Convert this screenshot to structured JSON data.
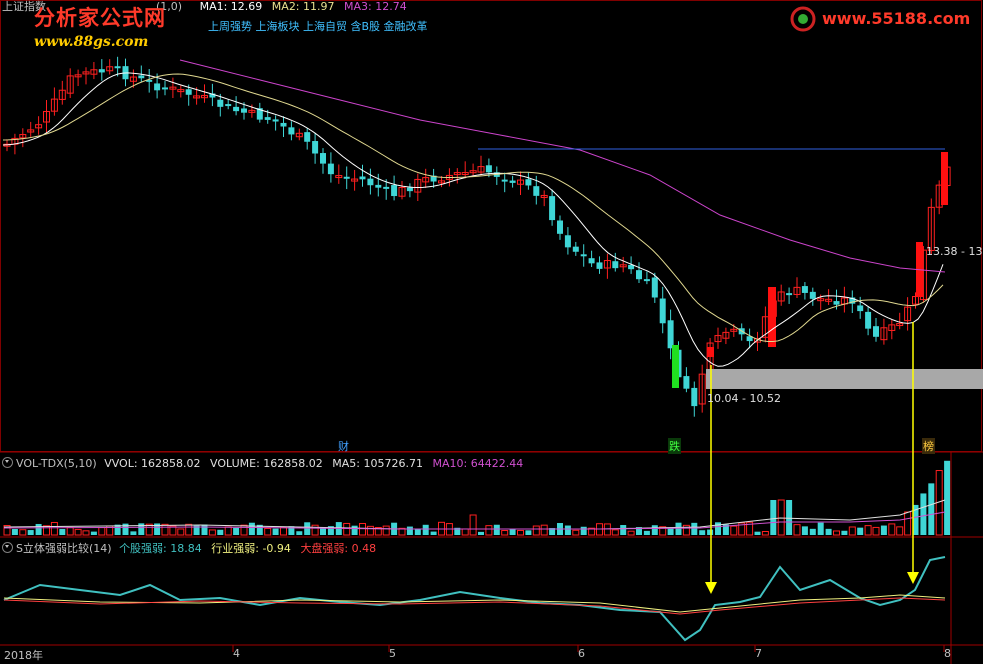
{
  "main_panel": {
    "title": "上证指数",
    "ma_params": "(1,0)",
    "ma1_label": "MA1: 12.69",
    "ma2_label": "MA2: 11.97",
    "ma3_label": "MA3: 12.74",
    "concepts": "上周强势 上海板块 上海自贸 含B股 金融改革",
    "price_box_label": "10.04 - 10.52",
    "price_range_right": "13.38 - 13.",
    "markers": {
      "cai": "财",
      "die": "跌",
      "bang": "榜"
    },
    "colors": {
      "up": "#ff2020",
      "down": "#3fd6d6",
      "ma1": "#ffffff",
      "ma2": "#e0d890",
      "ma3": "#cc44cc",
      "arrow": "#ffff00"
    }
  },
  "logos": {
    "left_title": "分析家公式网",
    "left_url": "www.88gs.com",
    "right_url": "www.55188.com"
  },
  "volume_panel": {
    "name": "VOL-TDX(5,10)",
    "vvol": "VVOL: 162858.02",
    "volume": "VOLUME: 162858.02",
    "ma5": "MA5: 105726.71",
    "ma10": "MA10: 64422.44"
  },
  "strength_panel": {
    "name": "S立体强弱比较(14)",
    "stock": "个股强弱: 18.84",
    "industry": "行业强弱: -0.94",
    "market": "大盘强弱: 0.48",
    "colors": {
      "stock": "#40c0c0",
      "industry": "#f0f080",
      "market": "#ff4040"
    }
  },
  "x_axis": {
    "labels": [
      "2018年",
      "4",
      "5",
      "6",
      "7",
      "8"
    ]
  }
}
